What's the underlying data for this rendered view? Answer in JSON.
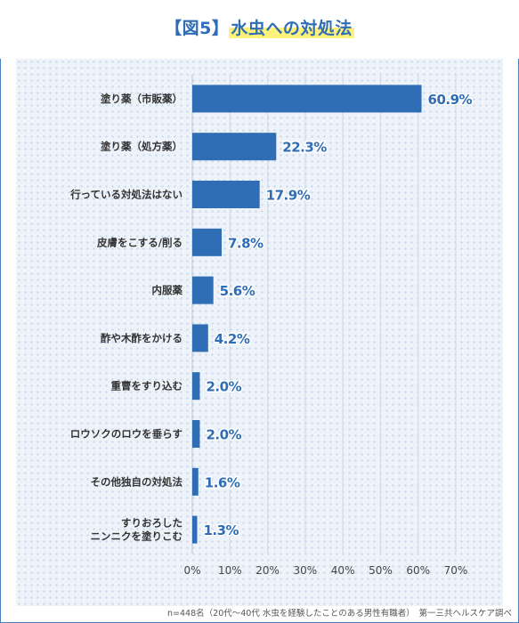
{
  "title_prefix": "【図5】",
  "title_main": "水虫への対処法",
  "footer": "n=448名（20代〜40代 水虫を経験したことのある男性有職者）　第一三共ヘルスケア調べ",
  "colors": {
    "bar": "#2f6db5",
    "accent": "#2f6db5",
    "highlight": "#fff27a"
  },
  "chart_data": {
    "type": "bar",
    "orientation": "horizontal",
    "categories": [
      [
        "塗り薬（市販薬）"
      ],
      [
        "塗り薬（処方薬）"
      ],
      [
        "行っている対処法はない"
      ],
      [
        "皮膚をこする/削る"
      ],
      [
        "内服薬"
      ],
      [
        "酢や木酢をかける"
      ],
      [
        "重曹をすり込む"
      ],
      [
        "ロウソクのロウを垂らす"
      ],
      [
        "その他独自の対処法"
      ],
      [
        "すりおろした",
        "ニンニクを塗りこむ"
      ]
    ],
    "values": [
      60.9,
      22.3,
      17.9,
      7.8,
      5.6,
      4.2,
      2.0,
      2.0,
      1.6,
      1.3
    ],
    "value_labels": [
      "60.9%",
      "22.3%",
      "17.9%",
      "7.8%",
      "5.6%",
      "4.2%",
      "2.0%",
      "2.0%",
      "1.6%",
      "1.3%"
    ],
    "xlim": [
      0,
      70
    ],
    "xticks": [
      "0%",
      "10%",
      "20%",
      "30%",
      "40%",
      "50%",
      "60%",
      "70%"
    ],
    "grid": "vertical"
  }
}
